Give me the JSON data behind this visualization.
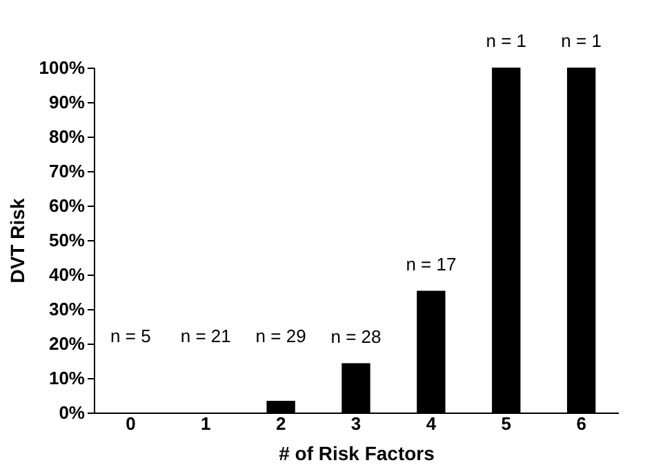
{
  "chart_data": {
    "type": "bar",
    "xlabel": "# of Risk Factors",
    "ylabel": "DVT Risk",
    "categories": [
      "0",
      "1",
      "2",
      "3",
      "4",
      "5",
      "6"
    ],
    "values": [
      0,
      0,
      3.4,
      14.3,
      35.3,
      100,
      100
    ],
    "color": "#000000",
    "ylim": [
      0,
      100
    ],
    "yticks": [
      {
        "value": 0,
        "label": "0%"
      },
      {
        "value": 10,
        "label": "10%"
      },
      {
        "value": 20,
        "label": "20%"
      },
      {
        "value": 30,
        "label": "30%"
      },
      {
        "value": 40,
        "label": "40%"
      },
      {
        "value": 50,
        "label": "50%"
      },
      {
        "value": 60,
        "label": "60%"
      },
      {
        "value": 70,
        "label": "70%"
      },
      {
        "value": 80,
        "label": "80%"
      },
      {
        "value": 90,
        "label": "90%"
      },
      {
        "value": 100,
        "label": "100%"
      }
    ],
    "grid": false,
    "annotations": [
      "n = 5",
      "n = 21",
      "n = 29",
      {
        "text": "n = 28",
        "x": "3",
        "y": 14.3
      },
      {
        "text": "n = 17",
        "x": "4",
        "y": 35.3
      },
      {
        "text": "n = 1",
        "x": "5",
        "y": 100
      },
      {
        "text": "n = 1",
        "x": "6",
        "y": 100
      }
    ]
  }
}
